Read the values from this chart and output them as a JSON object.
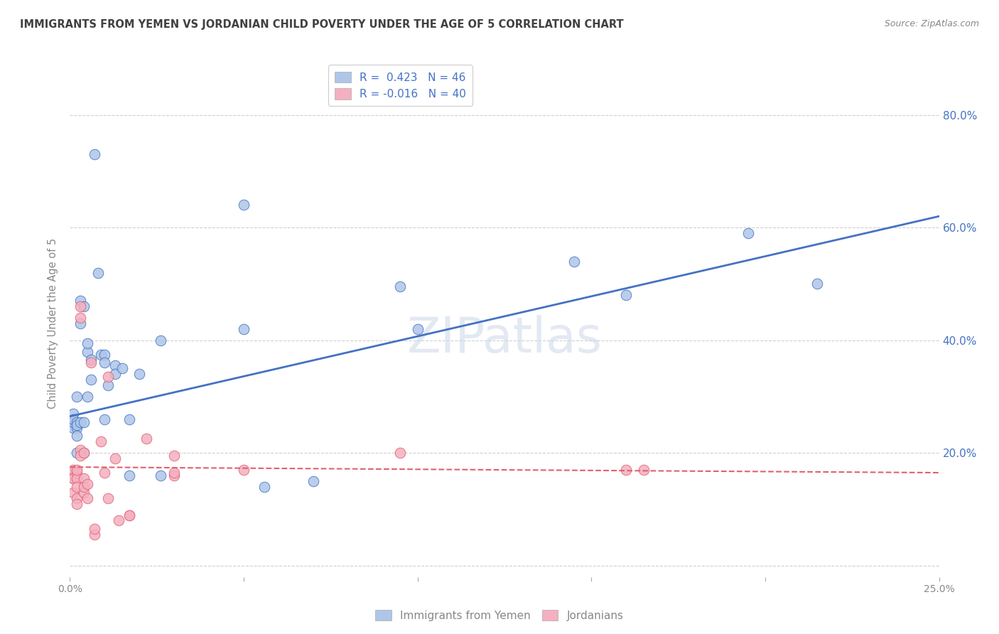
{
  "title": "IMMIGRANTS FROM YEMEN VS JORDANIAN CHILD POVERTY UNDER THE AGE OF 5 CORRELATION CHART",
  "source": "Source: ZipAtlas.com",
  "ylabel": "Child Poverty Under the Age of 5",
  "yticks_labels": [
    "",
    "20.0%",
    "40.0%",
    "60.0%",
    "80.0%"
  ],
  "ytick_vals": [
    0,
    0.2,
    0.4,
    0.6,
    0.8
  ],
  "xtick_vals": [
    0.0,
    0.05,
    0.1,
    0.15,
    0.2,
    0.25
  ],
  "xtick_labels_show": [
    "0.0%",
    "",
    "",
    "",
    "",
    "25.0%"
  ],
  "xlim": [
    0.0,
    0.25
  ],
  "ylim": [
    -0.02,
    0.88
  ],
  "legend_entries": [
    {
      "label": "R =  0.423   N = 46",
      "color": "#aec6e8"
    },
    {
      "label": "R = -0.016   N = 40",
      "color": "#f4b8c8"
    }
  ],
  "watermark": "ZIPatlas",
  "blue_scatter": [
    [
      0.001,
      0.245
    ],
    [
      0.001,
      0.255
    ],
    [
      0.001,
      0.27
    ],
    [
      0.001,
      0.26
    ],
    [
      0.002,
      0.245
    ],
    [
      0.002,
      0.255
    ],
    [
      0.002,
      0.25
    ],
    [
      0.002,
      0.2
    ],
    [
      0.002,
      0.3
    ],
    [
      0.002,
      0.23
    ],
    [
      0.003,
      0.47
    ],
    [
      0.003,
      0.43
    ],
    [
      0.003,
      0.255
    ],
    [
      0.004,
      0.46
    ],
    [
      0.004,
      0.255
    ],
    [
      0.004,
      0.2
    ],
    [
      0.005,
      0.38
    ],
    [
      0.005,
      0.395
    ],
    [
      0.005,
      0.3
    ],
    [
      0.006,
      0.365
    ],
    [
      0.006,
      0.33
    ],
    [
      0.007,
      0.73
    ],
    [
      0.008,
      0.52
    ],
    [
      0.009,
      0.375
    ],
    [
      0.01,
      0.375
    ],
    [
      0.01,
      0.36
    ],
    [
      0.01,
      0.26
    ],
    [
      0.011,
      0.32
    ],
    [
      0.013,
      0.355
    ],
    [
      0.013,
      0.34
    ],
    [
      0.015,
      0.35
    ],
    [
      0.017,
      0.26
    ],
    [
      0.017,
      0.16
    ],
    [
      0.02,
      0.34
    ],
    [
      0.026,
      0.4
    ],
    [
      0.026,
      0.16
    ],
    [
      0.05,
      0.64
    ],
    [
      0.05,
      0.42
    ],
    [
      0.056,
      0.14
    ],
    [
      0.07,
      0.15
    ],
    [
      0.095,
      0.495
    ],
    [
      0.1,
      0.42
    ],
    [
      0.145,
      0.54
    ],
    [
      0.16,
      0.48
    ],
    [
      0.195,
      0.59
    ],
    [
      0.215,
      0.5
    ]
  ],
  "pink_scatter": [
    [
      0.001,
      0.165
    ],
    [
      0.001,
      0.155
    ],
    [
      0.001,
      0.13
    ],
    [
      0.001,
      0.17
    ],
    [
      0.001,
      0.155
    ],
    [
      0.002,
      0.165
    ],
    [
      0.002,
      0.155
    ],
    [
      0.002,
      0.17
    ],
    [
      0.002,
      0.14
    ],
    [
      0.002,
      0.12
    ],
    [
      0.002,
      0.11
    ],
    [
      0.003,
      0.46
    ],
    [
      0.003,
      0.44
    ],
    [
      0.003,
      0.205
    ],
    [
      0.003,
      0.195
    ],
    [
      0.004,
      0.155
    ],
    [
      0.004,
      0.2
    ],
    [
      0.004,
      0.13
    ],
    [
      0.004,
      0.14
    ],
    [
      0.005,
      0.145
    ],
    [
      0.005,
      0.12
    ],
    [
      0.006,
      0.36
    ],
    [
      0.007,
      0.055
    ],
    [
      0.007,
      0.065
    ],
    [
      0.009,
      0.22
    ],
    [
      0.01,
      0.165
    ],
    [
      0.011,
      0.335
    ],
    [
      0.011,
      0.12
    ],
    [
      0.013,
      0.19
    ],
    [
      0.014,
      0.08
    ],
    [
      0.017,
      0.09
    ],
    [
      0.017,
      0.09
    ],
    [
      0.022,
      0.225
    ],
    [
      0.03,
      0.195
    ],
    [
      0.03,
      0.16
    ],
    [
      0.03,
      0.165
    ],
    [
      0.05,
      0.17
    ],
    [
      0.095,
      0.2
    ],
    [
      0.16,
      0.17
    ],
    [
      0.165,
      0.17
    ]
  ],
  "blue_line_x": [
    0.0,
    0.25
  ],
  "blue_line_y": [
    0.265,
    0.62
  ],
  "pink_line_x": [
    0.0,
    0.25
  ],
  "pink_line_y": [
    0.175,
    0.165
  ],
  "blue_color": "#4472c4",
  "pink_color": "#e06070",
  "blue_scatter_color": "#aec6e8",
  "pink_scatter_color": "#f4b0c0",
  "background_color": "#ffffff",
  "grid_color": "#d0d0d0",
  "title_color": "#404040",
  "source_color": "#888888",
  "ylabel_color": "#888888",
  "right_ytick_color": "#4472c4",
  "xtick_color": "#888888"
}
